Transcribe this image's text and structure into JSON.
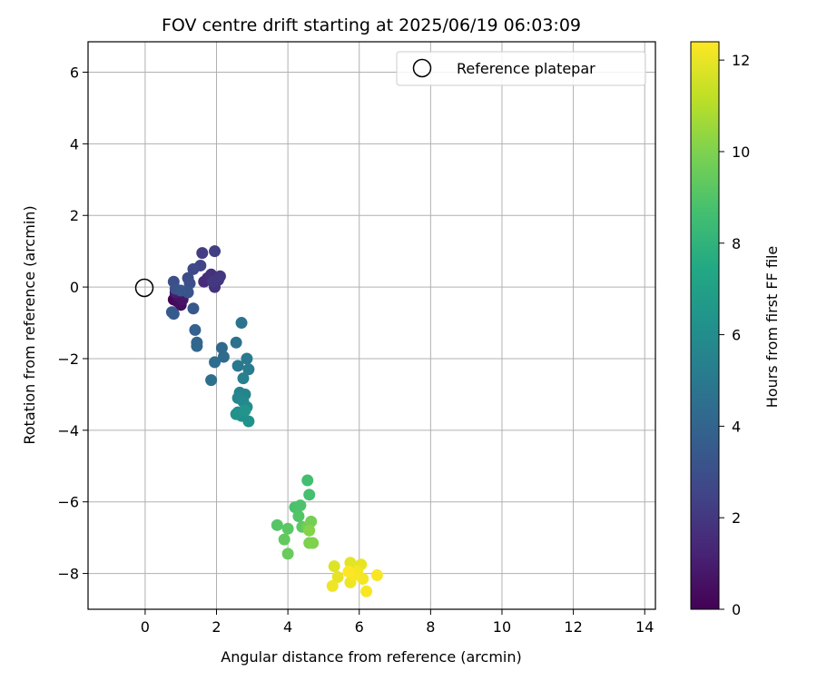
{
  "chart_data": {
    "type": "scatter",
    "title": "FOV centre drift starting at 2025/06/19 06:03:09",
    "xlabel": "Angular distance from reference (arcmin)",
    "ylabel": "Rotation from reference (arcmin)",
    "colorbar_label": "Hours from first FF file",
    "xlim": [
      -1.6,
      14.3
    ],
    "ylim": [
      -9.0,
      6.85
    ],
    "clim": [
      0,
      12.4
    ],
    "xticks": [
      "0",
      "2",
      "4",
      "6",
      "8",
      "10",
      "12",
      "14"
    ],
    "yticks": [
      "−8",
      "−6",
      "−4",
      "−2",
      "0",
      "2",
      "4",
      "6"
    ],
    "colorbar_ticks": [
      "0",
      "2",
      "4",
      "6",
      "8",
      "10",
      "12"
    ],
    "grid": true,
    "legend_position": "top-right",
    "legend": [
      {
        "marker": "open-circle",
        "label": "Reference platepar"
      }
    ],
    "colormap": "viridis",
    "reference_point": {
      "x": 0,
      "y": 0
    },
    "points": [
      {
        "x": 0.8,
        "y": -0.35,
        "h": 0.1
      },
      {
        "x": 0.85,
        "y": -0.25,
        "h": 0.2
      },
      {
        "x": 0.9,
        "y": -0.4,
        "h": 0.3
      },
      {
        "x": 1.0,
        "y": -0.5,
        "h": 0.4
      },
      {
        "x": 0.95,
        "y": -0.3,
        "h": 0.5
      },
      {
        "x": 1.05,
        "y": -0.35,
        "h": 0.6
      },
      {
        "x": 1.1,
        "y": -0.2,
        "h": 0.8
      },
      {
        "x": 0.85,
        "y": -0.15,
        "h": 1.0
      },
      {
        "x": 1.65,
        "y": 0.15,
        "h": 1.5
      },
      {
        "x": 1.75,
        "y": 0.25,
        "h": 1.6
      },
      {
        "x": 1.85,
        "y": 0.35,
        "h": 1.7
      },
      {
        "x": 1.95,
        "y": 0.0,
        "h": 1.8
      },
      {
        "x": 2.05,
        "y": 0.2,
        "h": 1.9
      },
      {
        "x": 2.1,
        "y": 0.3,
        "h": 2.0
      },
      {
        "x": 1.9,
        "y": 0.15,
        "h": 2.0
      },
      {
        "x": 1.6,
        "y": 0.95,
        "h": 2.2
      },
      {
        "x": 1.95,
        "y": 1.0,
        "h": 2.3
      },
      {
        "x": 1.55,
        "y": 0.6,
        "h": 2.5
      },
      {
        "x": 1.35,
        "y": 0.5,
        "h": 2.7
      },
      {
        "x": 1.2,
        "y": 0.25,
        "h": 2.8
      },
      {
        "x": 1.25,
        "y": 0.1,
        "h": 3.0
      },
      {
        "x": 0.8,
        "y": 0.15,
        "h": 3.0
      },
      {
        "x": 0.85,
        "y": -0.05,
        "h": 3.1
      },
      {
        "x": 1.2,
        "y": -0.15,
        "h": 3.2
      },
      {
        "x": 1.0,
        "y": -0.1,
        "h": 3.3
      },
      {
        "x": 1.35,
        "y": -0.6,
        "h": 3.4
      },
      {
        "x": 0.8,
        "y": -0.75,
        "h": 3.5
      },
      {
        "x": 0.75,
        "y": -0.7,
        "h": 3.5
      },
      {
        "x": 1.4,
        "y": -1.2,
        "h": 3.8
      },
      {
        "x": 1.45,
        "y": -1.55,
        "h": 4.0
      },
      {
        "x": 1.45,
        "y": -1.65,
        "h": 4.1
      },
      {
        "x": 2.15,
        "y": -1.7,
        "h": 4.2
      },
      {
        "x": 2.2,
        "y": -1.95,
        "h": 4.3
      },
      {
        "x": 1.95,
        "y": -2.1,
        "h": 4.4
      },
      {
        "x": 1.85,
        "y": -2.6,
        "h": 4.5
      },
      {
        "x": 2.55,
        "y": -1.55,
        "h": 4.6
      },
      {
        "x": 2.7,
        "y": -1.0,
        "h": 4.7
      },
      {
        "x": 2.6,
        "y": -2.2,
        "h": 4.9
      },
      {
        "x": 2.85,
        "y": -2.0,
        "h": 5.0
      },
      {
        "x": 2.9,
        "y": -2.3,
        "h": 5.1
      },
      {
        "x": 2.75,
        "y": -2.55,
        "h": 5.3
      },
      {
        "x": 2.65,
        "y": -2.95,
        "h": 5.5
      },
      {
        "x": 2.8,
        "y": -3.0,
        "h": 5.6
      },
      {
        "x": 2.6,
        "y": -3.1,
        "h": 5.7
      },
      {
        "x": 2.75,
        "y": -3.2,
        "h": 5.8
      },
      {
        "x": 2.85,
        "y": -3.35,
        "h": 5.9
      },
      {
        "x": 2.6,
        "y": -3.5,
        "h": 6.0
      },
      {
        "x": 2.7,
        "y": -3.6,
        "h": 6.1
      },
      {
        "x": 2.9,
        "y": -3.75,
        "h": 6.2
      },
      {
        "x": 2.55,
        "y": -3.55,
        "h": 6.3
      },
      {
        "x": 2.8,
        "y": -3.45,
        "h": 6.4
      },
      {
        "x": 4.55,
        "y": -5.4,
        "h": 8.6
      },
      {
        "x": 4.6,
        "y": -5.8,
        "h": 8.7
      },
      {
        "x": 4.2,
        "y": -6.15,
        "h": 8.8
      },
      {
        "x": 4.35,
        "y": -6.1,
        "h": 8.9
      },
      {
        "x": 4.3,
        "y": -6.4,
        "h": 9.0
      },
      {
        "x": 3.7,
        "y": -6.65,
        "h": 9.1
      },
      {
        "x": 4.0,
        "y": -6.75,
        "h": 9.2
      },
      {
        "x": 4.4,
        "y": -6.7,
        "h": 9.3
      },
      {
        "x": 3.9,
        "y": -7.05,
        "h": 9.4
      },
      {
        "x": 4.0,
        "y": -7.45,
        "h": 9.5
      },
      {
        "x": 4.55,
        "y": -6.7,
        "h": 9.7
      },
      {
        "x": 4.65,
        "y": -6.55,
        "h": 9.8
      },
      {
        "x": 4.6,
        "y": -7.15,
        "h": 9.9
      },
      {
        "x": 4.7,
        "y": -7.15,
        "h": 10.0
      },
      {
        "x": 4.6,
        "y": -6.8,
        "h": 10.1
      },
      {
        "x": 5.3,
        "y": -7.8,
        "h": 11.8
      },
      {
        "x": 5.75,
        "y": -7.7,
        "h": 11.9
      },
      {
        "x": 6.05,
        "y": -7.75,
        "h": 12.0
      },
      {
        "x": 5.4,
        "y": -8.1,
        "h": 12.0
      },
      {
        "x": 5.25,
        "y": -8.35,
        "h": 12.1
      },
      {
        "x": 5.75,
        "y": -8.25,
        "h": 12.1
      },
      {
        "x": 5.95,
        "y": -7.95,
        "h": 12.2
      },
      {
        "x": 6.1,
        "y": -8.15,
        "h": 12.2
      },
      {
        "x": 6.2,
        "y": -8.5,
        "h": 12.3
      },
      {
        "x": 6.5,
        "y": -8.05,
        "h": 12.3
      },
      {
        "x": 5.85,
        "y": -8.05,
        "h": 12.3
      },
      {
        "x": 5.7,
        "y": -7.95,
        "h": 12.4
      }
    ]
  }
}
